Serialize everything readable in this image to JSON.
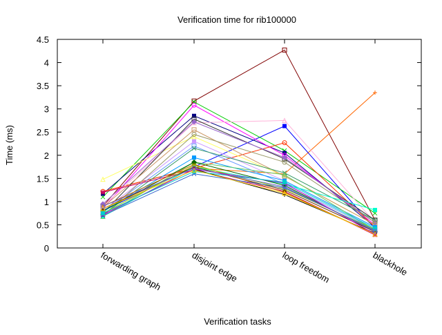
{
  "chart_data": {
    "type": "line",
    "title": "Verification time for rib100000",
    "xlabel": "Verification tasks",
    "ylabel": "Time (ms)",
    "categories": [
      "forwarding graph",
      "disjoint edge",
      "loop freedom",
      "blackhole"
    ],
    "ylim": [
      0,
      4.5
    ],
    "yticks": [
      "0",
      "0.5",
      "1",
      "1.5",
      "2",
      "2.5",
      "3",
      "3.5",
      "4",
      "4.5"
    ],
    "grid": false,
    "legend": "none",
    "series": [
      {
        "color": "#800000",
        "marker": "square-open",
        "values": [
          0.9,
          3.17,
          4.27,
          0.6
        ]
      },
      {
        "color": "#ff6600",
        "marker": "plus",
        "values": [
          1.22,
          1.72,
          1.6,
          3.35
        ]
      },
      {
        "color": "#0000ff",
        "marker": "square",
        "values": [
          0.8,
          1.75,
          2.63,
          0.42
        ]
      },
      {
        "color": "#00cc00",
        "marker": "cross",
        "values": [
          1.1,
          3.15,
          2.1,
          0.75
        ]
      },
      {
        "color": "#000080",
        "marker": "square",
        "values": [
          1.17,
          2.85,
          2.05,
          0.45
        ]
      },
      {
        "color": "#ff00ff",
        "marker": "circle-open",
        "values": [
          0.85,
          3.08,
          2.0,
          0.5
        ]
      },
      {
        "color": "#ff3300",
        "marker": "circle-open",
        "values": [
          1.22,
          1.72,
          2.27,
          0.45
        ]
      },
      {
        "color": "#ffff66",
        "marker": "triangle-open",
        "values": [
          1.48,
          2.4,
          1.55,
          0.5
        ]
      },
      {
        "color": "#ffb3d9",
        "marker": "triangle-open",
        "values": [
          0.9,
          2.7,
          2.75,
          0.55
        ]
      },
      {
        "color": "#333333",
        "marker": "square-open",
        "values": [
          0.75,
          2.78,
          1.92,
          0.6
        ]
      },
      {
        "color": "#9966cc",
        "marker": "diamond",
        "values": [
          0.95,
          2.72,
          1.95,
          0.55
        ]
      },
      {
        "color": "#cc9966",
        "marker": "square-open",
        "values": [
          0.88,
          2.55,
          1.55,
          0.5
        ]
      },
      {
        "color": "#cc99ff",
        "marker": "square",
        "values": [
          0.8,
          2.3,
          1.45,
          0.45
        ]
      },
      {
        "color": "#6699ff",
        "marker": "square-open",
        "values": [
          0.78,
          2.2,
          1.38,
          0.4
        ]
      },
      {
        "color": "#339966",
        "marker": "cross",
        "values": [
          0.72,
          2.15,
          1.62,
          0.6
        ]
      },
      {
        "color": "#999966",
        "marker": "circle-open",
        "values": [
          0.7,
          2.45,
          1.85,
          0.55
        ]
      },
      {
        "color": "#0099ff",
        "marker": "square",
        "values": [
          0.78,
          1.95,
          1.45,
          0.45
        ]
      },
      {
        "color": "#00ffcc",
        "marker": "square",
        "values": [
          0.68,
          1.75,
          1.38,
          0.82
        ]
      },
      {
        "color": "#66cc66",
        "marker": "triangle-open",
        "values": [
          0.68,
          1.85,
          1.58,
          0.38
        ]
      },
      {
        "color": "#006600",
        "marker": "diamond",
        "values": [
          0.8,
          1.85,
          1.35,
          0.35
        ]
      },
      {
        "color": "#cc0066",
        "marker": "star",
        "values": [
          1.2,
          1.68,
          1.22,
          0.28
        ]
      },
      {
        "color": "#000000",
        "marker": "plus",
        "values": [
          0.72,
          1.7,
          1.15,
          0.32
        ]
      },
      {
        "color": "#663300",
        "marker": "triangle",
        "values": [
          0.85,
          1.75,
          1.25,
          0.35
        ]
      },
      {
        "color": "#cc6600",
        "marker": "plus",
        "values": [
          0.9,
          1.8,
          1.2,
          0.3
        ]
      },
      {
        "color": "#99cc00",
        "marker": "cross",
        "values": [
          0.75,
          1.78,
          1.28,
          0.4
        ]
      },
      {
        "color": "#3366cc",
        "marker": "cross",
        "values": [
          0.7,
          1.6,
          1.3,
          0.38
        ]
      },
      {
        "color": "#cc00cc",
        "marker": "cross",
        "values": [
          0.72,
          1.7,
          1.4,
          0.3
        ]
      },
      {
        "color": "#00cccc",
        "marker": "square",
        "values": [
          0.75,
          1.65,
          1.42,
          0.42
        ]
      },
      {
        "color": "#ffcc00",
        "marker": "triangle-open",
        "values": [
          0.85,
          1.68,
          1.18,
          0.3
        ]
      },
      {
        "color": "#6666cc",
        "marker": "circle-open",
        "values": [
          0.9,
          1.72,
          1.32,
          0.36
        ]
      }
    ]
  }
}
